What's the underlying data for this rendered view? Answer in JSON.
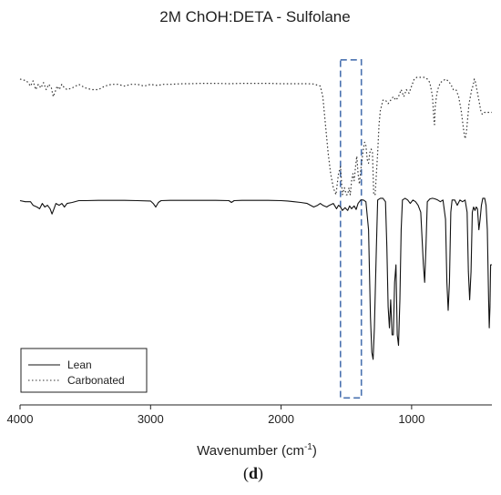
{
  "chart_data": {
    "type": "line",
    "title": "2M ChOH:DETA - Sulfolane",
    "xlabel": "Wavenumber (cm",
    "xlabel_sup": "-1",
    "xlabel_close": ")",
    "ylabel": "",
    "panel_label_open": "(",
    "panel_label_letter": "d",
    "panel_label_close": ")",
    "xlim": [
      4000,
      385
    ],
    "x_reversed": true,
    "ylim": [
      0,
      1
    ],
    "y_axis_visible": false,
    "grid": false,
    "legend_position": "bottom-left",
    "xticks": [
      {
        "value": 4000,
        "label": "4000"
      },
      {
        "value": 3000,
        "label": "3000"
      },
      {
        "value": 2000,
        "label": "2000"
      },
      {
        "value": 1000,
        "label": "1000"
      }
    ],
    "highlight_region": {
      "x_range": [
        1545,
        1385
      ],
      "y_range": [
        0.02,
        0.985
      ],
      "color": "#4a72b0"
    },
    "series": [
      {
        "name": "Lean",
        "style": "solid",
        "color": "#111111",
        "points": [
          [
            4000,
            0.583
          ],
          [
            3960,
            0.58
          ],
          [
            3920,
            0.58
          ],
          [
            3900,
            0.57
          ],
          [
            3870,
            0.565
          ],
          [
            3850,
            0.56
          ],
          [
            3830,
            0.575
          ],
          [
            3810,
            0.565
          ],
          [
            3790,
            0.57
          ],
          [
            3770,
            0.56
          ],
          [
            3755,
            0.545
          ],
          [
            3740,
            0.56
          ],
          [
            3725,
            0.575
          ],
          [
            3700,
            0.57
          ],
          [
            3680,
            0.575
          ],
          [
            3660,
            0.565
          ],
          [
            3640,
            0.575
          ],
          [
            3600,
            0.578
          ],
          [
            3550,
            0.583
          ],
          [
            3500,
            0.583
          ],
          [
            3400,
            0.584
          ],
          [
            3300,
            0.584
          ],
          [
            3200,
            0.584
          ],
          [
            3100,
            0.583
          ],
          [
            3000,
            0.582
          ],
          [
            2980,
            0.575
          ],
          [
            2960,
            0.565
          ],
          [
            2940,
            0.578
          ],
          [
            2920,
            0.583
          ],
          [
            2850,
            0.584
          ],
          [
            2800,
            0.584
          ],
          [
            2700,
            0.584
          ],
          [
            2600,
            0.584
          ],
          [
            2500,
            0.584
          ],
          [
            2400,
            0.583
          ],
          [
            2380,
            0.578
          ],
          [
            2360,
            0.583
          ],
          [
            2300,
            0.584
          ],
          [
            2200,
            0.584
          ],
          [
            2100,
            0.584
          ],
          [
            2000,
            0.583
          ],
          [
            1950,
            0.582
          ],
          [
            1900,
            0.58
          ],
          [
            1850,
            0.578
          ],
          [
            1800,
            0.575
          ],
          [
            1750,
            0.565
          ],
          [
            1720,
            0.57
          ],
          [
            1700,
            0.575
          ],
          [
            1680,
            0.57
          ],
          [
            1650,
            0.565
          ],
          [
            1630,
            0.57
          ],
          [
            1600,
            0.575
          ],
          [
            1575,
            0.56
          ],
          [
            1560,
            0.57
          ],
          [
            1545,
            0.565
          ],
          [
            1530,
            0.555
          ],
          [
            1510,
            0.563
          ],
          [
            1490,
            0.555
          ],
          [
            1475,
            0.568
          ],
          [
            1460,
            0.56
          ],
          [
            1440,
            0.568
          ],
          [
            1425,
            0.558
          ],
          [
            1410,
            0.575
          ],
          [
            1390,
            0.585
          ],
          [
            1370,
            0.585
          ],
          [
            1350,
            0.58
          ],
          [
            1330,
            0.5
          ],
          [
            1315,
            0.25
          ],
          [
            1305,
            0.15
          ],
          [
            1295,
            0.13
          ],
          [
            1285,
            0.22
          ],
          [
            1270,
            0.45
          ],
          [
            1260,
            0.585
          ],
          [
            1240,
            0.59
          ],
          [
            1220,
            0.59
          ],
          [
            1200,
            0.58
          ],
          [
            1190,
            0.45
          ],
          [
            1180,
            0.28
          ],
          [
            1170,
            0.22
          ],
          [
            1160,
            0.3
          ],
          [
            1150,
            0.2
          ],
          [
            1140,
            0.2
          ],
          [
            1130,
            0.35
          ],
          [
            1120,
            0.4
          ],
          [
            1110,
            0.2
          ],
          [
            1100,
            0.17
          ],
          [
            1090,
            0.3
          ],
          [
            1080,
            0.5
          ],
          [
            1070,
            0.585
          ],
          [
            1050,
            0.59
          ],
          [
            1030,
            0.585
          ],
          [
            1010,
            0.575
          ],
          [
            990,
            0.585
          ],
          [
            970,
            0.58
          ],
          [
            950,
            0.57
          ],
          [
            930,
            0.55
          ],
          [
            910,
            0.4
          ],
          [
            900,
            0.35
          ],
          [
            890,
            0.45
          ],
          [
            880,
            0.58
          ],
          [
            860,
            0.588
          ],
          [
            840,
            0.59
          ],
          [
            820,
            0.588
          ],
          [
            800,
            0.585
          ],
          [
            780,
            0.58
          ],
          [
            760,
            0.585
          ],
          [
            740,
            0.53
          ],
          [
            730,
            0.35
          ],
          [
            720,
            0.27
          ],
          [
            710,
            0.35
          ],
          [
            700,
            0.55
          ],
          [
            690,
            0.585
          ],
          [
            670,
            0.585
          ],
          [
            650,
            0.57
          ],
          [
            630,
            0.585
          ],
          [
            610,
            0.58
          ],
          [
            590,
            0.585
          ],
          [
            575,
            0.55
          ],
          [
            565,
            0.38
          ],
          [
            555,
            0.3
          ],
          [
            545,
            0.38
          ],
          [
            535,
            0.55
          ],
          [
            525,
            0.565
          ],
          [
            515,
            0.555
          ],
          [
            505,
            0.565
          ],
          [
            495,
            0.56
          ],
          [
            485,
            0.5
          ],
          [
            475,
            0.53
          ],
          [
            465,
            0.57
          ],
          [
            455,
            0.59
          ],
          [
            440,
            0.59
          ],
          [
            430,
            0.57
          ],
          [
            420,
            0.5
          ],
          [
            410,
            0.3
          ],
          [
            405,
            0.22
          ],
          [
            400,
            0.28
          ],
          [
            395,
            0.4
          ],
          [
            390,
            0.4
          ],
          [
            385,
            0.4
          ]
        ]
      },
      {
        "name": "Carbonated",
        "style": "dotted",
        "color": "#333333",
        "points": [
          [
            4000,
            0.93
          ],
          [
            3950,
            0.925
          ],
          [
            3920,
            0.91
          ],
          [
            3900,
            0.925
          ],
          [
            3880,
            0.9
          ],
          [
            3860,
            0.915
          ],
          [
            3840,
            0.905
          ],
          [
            3820,
            0.92
          ],
          [
            3800,
            0.9
          ],
          [
            3780,
            0.915
          ],
          [
            3760,
            0.905
          ],
          [
            3745,
            0.88
          ],
          [
            3730,
            0.895
          ],
          [
            3715,
            0.91
          ],
          [
            3700,
            0.9
          ],
          [
            3680,
            0.915
          ],
          [
            3660,
            0.905
          ],
          [
            3640,
            0.9
          ],
          [
            3600,
            0.905
          ],
          [
            3550,
            0.915
          ],
          [
            3500,
            0.905
          ],
          [
            3450,
            0.9
          ],
          [
            3400,
            0.9
          ],
          [
            3350,
            0.91
          ],
          [
            3300,
            0.915
          ],
          [
            3250,
            0.915
          ],
          [
            3200,
            0.91
          ],
          [
            3150,
            0.915
          ],
          [
            3100,
            0.915
          ],
          [
            3050,
            0.91
          ],
          [
            3000,
            0.915
          ],
          [
            2950,
            0.912
          ],
          [
            2900,
            0.915
          ],
          [
            2850,
            0.915
          ],
          [
            2800,
            0.916
          ],
          [
            2750,
            0.917
          ],
          [
            2700,
            0.917
          ],
          [
            2600,
            0.918
          ],
          [
            2500,
            0.918
          ],
          [
            2400,
            0.917
          ],
          [
            2300,
            0.918
          ],
          [
            2200,
            0.918
          ],
          [
            2100,
            0.918
          ],
          [
            2000,
            0.917
          ],
          [
            1900,
            0.917
          ],
          [
            1800,
            0.917
          ],
          [
            1750,
            0.916
          ],
          [
            1700,
            0.91
          ],
          [
            1680,
            0.88
          ],
          [
            1660,
            0.8
          ],
          [
            1640,
            0.72
          ],
          [
            1620,
            0.66
          ],
          [
            1600,
            0.62
          ],
          [
            1580,
            0.6
          ],
          [
            1560,
            0.66
          ],
          [
            1545,
            0.68
          ],
          [
            1530,
            0.6
          ],
          [
            1515,
            0.62
          ],
          [
            1500,
            0.6
          ],
          [
            1490,
            0.6
          ],
          [
            1480,
            0.62
          ],
          [
            1470,
            0.6
          ],
          [
            1460,
            0.64
          ],
          [
            1450,
            0.66
          ],
          [
            1440,
            0.64
          ],
          [
            1430,
            0.68
          ],
          [
            1420,
            0.71
          ],
          [
            1410,
            0.66
          ],
          [
            1400,
            0.63
          ],
          [
            1390,
            0.67
          ],
          [
            1380,
            0.7
          ],
          [
            1370,
            0.73
          ],
          [
            1360,
            0.75
          ],
          [
            1350,
            0.74
          ],
          [
            1340,
            0.7
          ],
          [
            1330,
            0.69
          ],
          [
            1320,
            0.72
          ],
          [
            1310,
            0.73
          ],
          [
            1300,
            0.72
          ],
          [
            1290,
            0.6
          ],
          [
            1280,
            0.6
          ],
          [
            1270,
            0.66
          ],
          [
            1260,
            0.72
          ],
          [
            1250,
            0.8
          ],
          [
            1240,
            0.84
          ],
          [
            1220,
            0.87
          ],
          [
            1200,
            0.87
          ],
          [
            1180,
            0.86
          ],
          [
            1160,
            0.87
          ],
          [
            1140,
            0.88
          ],
          [
            1120,
            0.87
          ],
          [
            1100,
            0.88
          ],
          [
            1080,
            0.9
          ],
          [
            1060,
            0.88
          ],
          [
            1040,
            0.9
          ],
          [
            1020,
            0.89
          ],
          [
            1000,
            0.91
          ],
          [
            980,
            0.93
          ],
          [
            960,
            0.935
          ],
          [
            940,
            0.935
          ],
          [
            920,
            0.935
          ],
          [
            900,
            0.935
          ],
          [
            880,
            0.93
          ],
          [
            860,
            0.92
          ],
          [
            850,
            0.9
          ],
          [
            840,
            0.88
          ],
          [
            830,
            0.82
          ],
          [
            825,
            0.8
          ],
          [
            820,
            0.85
          ],
          [
            810,
            0.88
          ],
          [
            800,
            0.9
          ],
          [
            780,
            0.92
          ],
          [
            760,
            0.925
          ],
          [
            740,
            0.93
          ],
          [
            720,
            0.925
          ],
          [
            700,
            0.915
          ],
          [
            680,
            0.9
          ],
          [
            660,
            0.9
          ],
          [
            640,
            0.88
          ],
          [
            620,
            0.84
          ],
          [
            600,
            0.78
          ],
          [
            590,
            0.76
          ],
          [
            580,
            0.78
          ],
          [
            570,
            0.82
          ],
          [
            560,
            0.86
          ],
          [
            550,
            0.88
          ],
          [
            540,
            0.9
          ],
          [
            530,
            0.91
          ],
          [
            520,
            0.93
          ],
          [
            510,
            0.92
          ],
          [
            500,
            0.9
          ],
          [
            490,
            0.88
          ],
          [
            480,
            0.86
          ],
          [
            470,
            0.84
          ],
          [
            460,
            0.83
          ],
          [
            450,
            0.83
          ],
          [
            440,
            0.835
          ],
          [
            430,
            0.835
          ],
          [
            420,
            0.835
          ],
          [
            410,
            0.835
          ],
          [
            400,
            0.835
          ],
          [
            385,
            0.835
          ]
        ]
      }
    ]
  }
}
